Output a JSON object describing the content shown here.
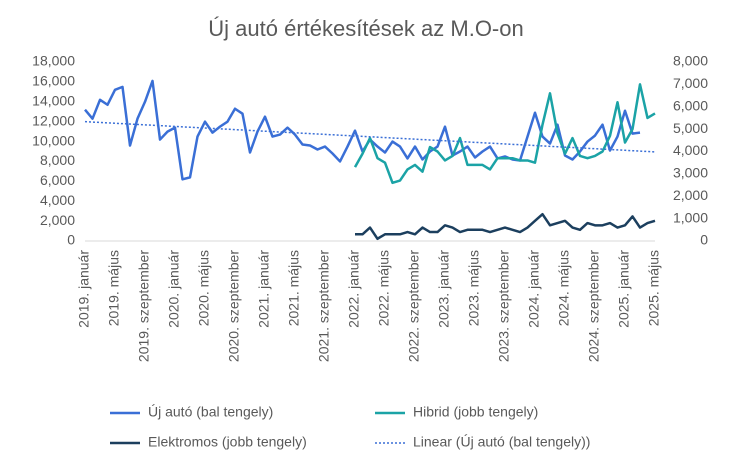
{
  "chart_data": {
    "type": "line",
    "title": "Új autó értékesítések az M.O-on",
    "categories": [
      "2019. január",
      null,
      null,
      null,
      "2019. május",
      null,
      null,
      null,
      "2019. szeptember",
      null,
      null,
      null,
      "2020. január",
      null,
      null,
      null,
      "2020. május",
      null,
      null,
      null,
      "2020. szeptember",
      null,
      null,
      null,
      "2021. január",
      null,
      null,
      null,
      "2021. május",
      null,
      null,
      null,
      "2021. szeptember",
      null,
      null,
      null,
      "2022. január",
      null,
      null,
      null,
      "2022. május",
      null,
      null,
      null,
      "2022. szeptember",
      null,
      null,
      null,
      "2023. január",
      null,
      null,
      null,
      "2023. május",
      null,
      null,
      null,
      "2023. szeptember",
      null,
      null,
      null,
      "2024. január",
      null,
      null,
      null,
      "2024. május",
      null,
      null,
      null,
      "2024. szeptember",
      null,
      null,
      null,
      "2025. január",
      null,
      null,
      null,
      "2025. május"
    ],
    "series": [
      {
        "name": "Új autó (bal tengely)",
        "color": "#3a6fd6",
        "values": [
          13200,
          12300,
          14200,
          13700,
          15200,
          15500,
          9600,
          12300,
          14000,
          16100,
          10200,
          11000,
          11400,
          6200,
          6400,
          10500,
          12000,
          10900,
          11500,
          12000,
          13300,
          12800,
          8900,
          11000,
          12500,
          10500,
          10700,
          11400,
          10700,
          9700,
          9600,
          9200,
          9500,
          8800,
          8000,
          9500,
          11100,
          9000,
          10200,
          9500,
          8900,
          10000,
          9500,
          8300,
          9500,
          8200,
          9000,
          9500,
          11500,
          8600,
          9000,
          9500,
          8400,
          9000,
          9500,
          8300,
          8500,
          8200,
          8100,
          10500,
          12900,
          10500,
          9800,
          11700,
          8600,
          8200,
          9000,
          10000,
          10600,
          11700,
          9100,
          10500,
          13100,
          10800,
          10900,
          null,
          null
        ]
      },
      {
        "name": "Hibrid (jobb tengely)",
        "color": "#1ba3a6",
        "axis": "y2",
        "values": [
          null,
          null,
          null,
          null,
          null,
          null,
          null,
          null,
          null,
          null,
          null,
          null,
          null,
          null,
          null,
          null,
          null,
          null,
          null,
          null,
          null,
          null,
          null,
          null,
          null,
          null,
          null,
          null,
          null,
          null,
          null,
          null,
          null,
          null,
          null,
          null,
          3300,
          3900,
          4600,
          3700,
          3500,
          2600,
          2700,
          3200,
          3400,
          3100,
          4200,
          4000,
          3600,
          3800,
          4600,
          3400,
          3400,
          3400,
          3200,
          3700,
          3700,
          3700,
          3600,
          3600,
          3500,
          5200,
          6600,
          4800,
          3900,
          4600,
          3800,
          3700,
          3800,
          4000,
          4700,
          6200,
          4400,
          5000,
          7000,
          5500,
          5700
        ]
      },
      {
        "name": "Elektromos (jobb tengely)",
        "color": "#1c3f5e",
        "axis": "y2",
        "values": [
          null,
          null,
          null,
          null,
          null,
          null,
          null,
          null,
          null,
          null,
          null,
          null,
          null,
          null,
          null,
          null,
          null,
          null,
          null,
          null,
          null,
          null,
          null,
          null,
          null,
          null,
          null,
          null,
          null,
          null,
          null,
          null,
          null,
          null,
          null,
          null,
          300,
          300,
          600,
          100,
          300,
          300,
          300,
          400,
          300,
          600,
          400,
          400,
          700,
          600,
          400,
          500,
          500,
          500,
          400,
          500,
          600,
          500,
          400,
          600,
          900,
          1200,
          700,
          800,
          900,
          600,
          500,
          800,
          700,
          700,
          800,
          600,
          700,
          1100,
          600,
          800,
          900
        ]
      },
      {
        "name": "Linear (Új autó (bal tengely))",
        "color": "#3a6fd6",
        "style": "dotted",
        "values": [
          12000,
          11960,
          11920,
          11880,
          11840,
          11800,
          11760,
          11720,
          11680,
          11640,
          11600,
          11560,
          11520,
          11480,
          11440,
          11400,
          11360,
          11320,
          11280,
          11240,
          11200,
          11160,
          11120,
          11080,
          11040,
          11000,
          10960,
          10920,
          10880,
          10840,
          10800,
          10760,
          10720,
          10680,
          10640,
          10600,
          10560,
          10520,
          10480,
          10440,
          10400,
          10360,
          10320,
          10280,
          10240,
          10200,
          10160,
          10120,
          10080,
          10040,
          10000,
          9960,
          9920,
          9880,
          9840,
          9800,
          9760,
          9720,
          9680,
          9640,
          9600,
          9560,
          9520,
          9480,
          9440,
          9400,
          9360,
          9320,
          9280,
          9240,
          9200,
          9160,
          9120,
          9080,
          9040,
          9000,
          8960
        ]
      }
    ],
    "ylim": [
      0,
      18000
    ],
    "yticks": [
      0,
      {
        "value": 2000,
        "label": "2,000"
      },
      {
        "value": 4000,
        "label": "4,000"
      },
      {
        "value": 6000,
        "label": "6,000"
      },
      {
        "value": 8000,
        "label": "8,000"
      },
      {
        "value": 10000,
        "label": "10,000"
      },
      {
        "value": 12000,
        "label": "12,000"
      },
      {
        "value": 14000,
        "label": "14,000"
      },
      {
        "value": 16000,
        "label": "16,000"
      },
      {
        "value": 18000,
        "label": "18,000"
      }
    ],
    "y2lim": [
      0,
      8000
    ],
    "y2ticks": [
      0,
      {
        "value": 1000,
        "label": "1,000"
      },
      {
        "value": 2000,
        "label": "2,000"
      },
      {
        "value": 3000,
        "label": "3,000"
      },
      {
        "value": 4000,
        "label": "4,000"
      },
      {
        "value": 5000,
        "label": "5,000"
      },
      {
        "value": 6000,
        "label": "6,000"
      },
      {
        "value": 7000,
        "label": "7,000"
      },
      {
        "value": 8000,
        "label": "8,000"
      }
    ],
    "grid": false,
    "legend": "bottom"
  }
}
